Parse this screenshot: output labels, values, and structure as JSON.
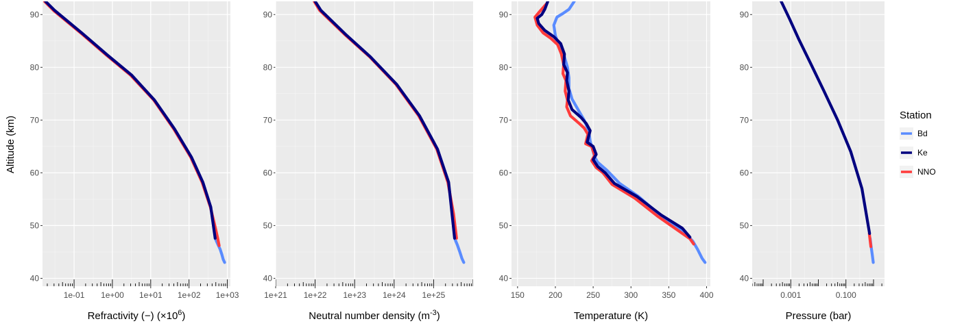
{
  "figure": {
    "y_axis_label": "Altitude (km)",
    "colors": {
      "panel_bg": "#ebebeb",
      "grid_major": "#ffffff",
      "grid_minor": "#f5f5f5",
      "tick_text": "#4d4d4d",
      "rug": "#000000"
    }
  },
  "legend": {
    "title": "Station",
    "items": [
      {
        "label": "Bd",
        "color": "#5a8cff"
      },
      {
        "label": "Ke",
        "color": "#00007f"
      },
      {
        "label": "NNO",
        "color": "#ff3b3b"
      }
    ]
  },
  "chart_data": [
    {
      "type": "line",
      "xlabel": {
        "base": "Refractivity (−) (×10",
        "sup": "6",
        "tail": ")"
      },
      "ylabel": "Altitude (km)",
      "x_scale": "log10",
      "xlim": [
        0.015,
        1200
      ],
      "ylim": [
        38.5,
        92.5
      ],
      "x_ticks": [
        {
          "value": 0.1,
          "label": "1e-01"
        },
        {
          "value": 1,
          "label": "1e+00"
        },
        {
          "value": 10,
          "label": "1e+01"
        },
        {
          "value": 100,
          "label": "1e+02"
        },
        {
          "value": 1000,
          "label": "1e+03"
        }
      ],
      "y_ticks": [
        40,
        50,
        60,
        70,
        80,
        90
      ],
      "series": [
        {
          "name": "Bd",
          "color": "#5a8cff",
          "x": [
            480,
            560,
            650,
            720,
            780,
            850
          ],
          "y": [
            47.6,
            46.5,
            45.5,
            44.5,
            43.6,
            43.0
          ]
        },
        {
          "name": "NNO",
          "color": "#ff3b3b",
          "x": [
            0.017,
            0.03,
            0.15,
            0.7,
            3,
            12,
            40,
            110,
            220,
            360,
            470,
            560,
            610
          ],
          "y": [
            92.5,
            90.7,
            86.5,
            82.3,
            78.5,
            73.8,
            68.3,
            63.0,
            58.2,
            53.5,
            50.0,
            47.6,
            46.2
          ]
        },
        {
          "name": "Ke",
          "color": "#00007f",
          "x": [
            0.018,
            0.031,
            0.16,
            0.75,
            3.2,
            12.5,
            42,
            115,
            230,
            370,
            480
          ],
          "y": [
            92.5,
            90.8,
            86.5,
            82.3,
            78.5,
            73.8,
            68.3,
            63.0,
            58.2,
            53.5,
            47.6
          ]
        }
      ]
    },
    {
      "type": "line",
      "xlabel": {
        "base": "Neutral number density (m",
        "sup": "-3",
        "tail": ")"
      },
      "ylabel": "Altitude (km)",
      "x_scale": "log10",
      "xlim": [
        1e+21,
        1e+26
      ],
      "ylim": [
        38.5,
        92.5
      ],
      "x_ticks": [
        {
          "value": 1e+21,
          "label": "1e+21"
        },
        {
          "value": 1e+22,
          "label": "1e+22"
        },
        {
          "value": 1e+23,
          "label": "1e+23"
        },
        {
          "value": 1e+24,
          "label": "1e+24"
        },
        {
          "value": 1e+25,
          "label": "1e+25"
        }
      ],
      "y_ticks": [
        40,
        50,
        60,
        70,
        80,
        90
      ],
      "series": [
        {
          "name": "Bd",
          "color": "#5a8cff",
          "x": [
            3.4e+25,
            4e+25,
            4.6e+25,
            5.2e+25,
            5.8e+25
          ],
          "y": [
            47.6,
            46.3,
            45.0,
            43.8,
            43.0
          ]
        },
        {
          "name": "NNO",
          "color": "#ff3b3b",
          "x": [
            9.5e+21,
            1.3e+22,
            5.5e+22,
            2.4e+23,
            1.1e+24,
            4.2e+24,
            1.2e+25,
            2.3e+25,
            3.2e+25,
            3.8e+25
          ],
          "y": [
            92.5,
            90.8,
            86.3,
            82.0,
            76.8,
            70.8,
            64.5,
            58.2,
            52.2,
            47.6
          ]
        },
        {
          "name": "Ke",
          "color": "#00007f",
          "x": [
            1e+22,
            1.4e+22,
            5.8e+22,
            2.5e+23,
            1.15e+24,
            4.4e+24,
            1.25e+25,
            2.4e+25,
            3.4e+25
          ],
          "y": [
            92.5,
            90.8,
            86.3,
            82.0,
            76.8,
            70.8,
            64.5,
            58.2,
            47.6
          ]
        }
      ]
    },
    {
      "type": "line",
      "xlabel": {
        "base": "Temperature (K)",
        "sup": "",
        "tail": ""
      },
      "ylabel": "Altitude (km)",
      "x_scale": "linear",
      "xlim": [
        142,
        405
      ],
      "ylim": [
        38.5,
        92.5
      ],
      "x_ticks": [
        {
          "value": 150,
          "label": "150"
        },
        {
          "value": 200,
          "label": "200"
        },
        {
          "value": 250,
          "label": "250"
        },
        {
          "value": 300,
          "label": "300"
        },
        {
          "value": 350,
          "label": "350"
        },
        {
          "value": 400,
          "label": "400"
        }
      ],
      "y_ticks": [
        40,
        50,
        60,
        70,
        80,
        90
      ],
      "series": [
        {
          "name": "Bd",
          "color": "#5a8cff",
          "x": [
            225,
            218,
            210,
            202,
            198,
            200,
            205,
            212,
            216,
            218,
            218,
            222,
            232,
            238,
            244,
            246,
            252,
            256,
            268,
            285,
            310,
            340,
            370,
            382,
            388,
            394,
            398
          ],
          "y": [
            92.5,
            91.0,
            90.2,
            89.5,
            88.0,
            86.0,
            84.0,
            82.0,
            80.0,
            78.0,
            76.0,
            74.0,
            71.5,
            70.0,
            68.0,
            66.0,
            63.0,
            62.0,
            60.5,
            58.0,
            55.5,
            51.8,
            48.8,
            47.0,
            45.5,
            43.8,
            43.0
          ]
        },
        {
          "name": "NNO",
          "color": "#ff3b3b",
          "x": [
            188,
            180,
            173,
            176,
            184,
            194,
            203,
            208,
            211,
            210,
            214,
            213,
            216,
            215,
            220,
            232,
            238,
            243,
            240,
            248,
            252,
            248,
            254,
            263,
            275,
            305,
            335,
            365,
            378,
            383
          ],
          "y": [
            92.0,
            90.7,
            89.5,
            88.0,
            86.5,
            85.5,
            84.3,
            82.5,
            80.5,
            78.8,
            77.5,
            75.5,
            73.8,
            72.5,
            70.8,
            69.3,
            68.5,
            67.3,
            65.5,
            65.0,
            63.3,
            62.3,
            61.0,
            60.0,
            57.8,
            55.2,
            51.8,
            48.8,
            47.5,
            46.5
          ]
        },
        {
          "name": "Ke",
          "color": "#00007f",
          "x": [
            190,
            186,
            182,
            176,
            178,
            186,
            198,
            207,
            212,
            211,
            216,
            215,
            218,
            217,
            222,
            234,
            241,
            246,
            242,
            250,
            254,
            250,
            256,
            266,
            278,
            308,
            340,
            368,
            378
          ],
          "y": [
            92.5,
            91.0,
            90.0,
            89.3,
            88.3,
            87.0,
            85.8,
            84.5,
            82.5,
            80.5,
            79.0,
            77.5,
            75.5,
            73.8,
            72.0,
            70.5,
            69.3,
            68.0,
            65.8,
            65.0,
            63.5,
            62.5,
            61.2,
            60.0,
            58.0,
            55.5,
            52.0,
            49.5,
            47.8
          ]
        }
      ]
    },
    {
      "type": "line",
      "xlabel": {
        "base": "Pressure (bar)",
        "sup": "",
        "tail": ""
      },
      "ylabel": "Altitude (km)",
      "x_scale": "log10",
      "xlim": [
        4e-05,
        2.5
      ],
      "ylim": [
        38.5,
        92.5
      ],
      "x_ticks": [
        {
          "value": 0.001,
          "label": "0.001"
        },
        {
          "value": 0.1,
          "label": "0.100"
        }
      ],
      "y_ticks": [
        40,
        50,
        60,
        70,
        80,
        90
      ],
      "series": [
        {
          "name": "Bd",
          "color": "#5a8cff",
          "x": [
            0.75,
            0.82,
            0.9,
            0.98
          ],
          "y": [
            47.6,
            46.0,
            44.5,
            43.0
          ]
        },
        {
          "name": "NNO",
          "color": "#ff3b3b",
          "x": [
            0.7,
            0.8
          ],
          "y": [
            48.5,
            46.0
          ]
        },
        {
          "name": "Ke",
          "color": "#00007f",
          "x": [
            0.00045,
            0.0009,
            0.002,
            0.0055,
            0.016,
            0.05,
            0.15,
            0.38,
            0.72
          ],
          "y": [
            92.5,
            89.2,
            85.2,
            80.5,
            75.5,
            70.0,
            64.0,
            57.0,
            48.5
          ]
        }
      ]
    }
  ]
}
